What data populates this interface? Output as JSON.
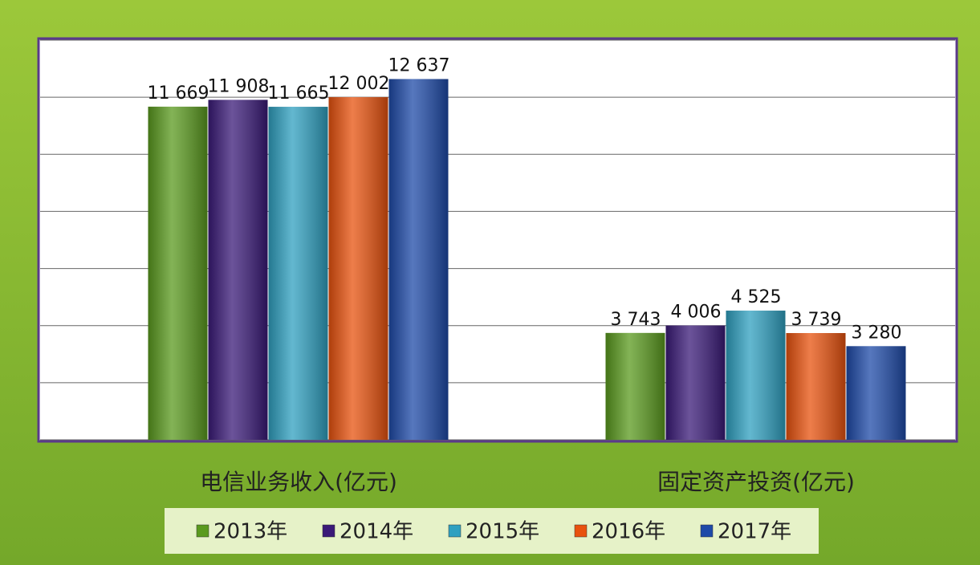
{
  "chart_data": {
    "type": "bar",
    "categories": [
      "电信业务收入(亿元)",
      "固定资产投资(亿元)"
    ],
    "series": [
      {
        "name": "2013年",
        "color": "#5a9a1e",
        "values": [
          11669,
          3743
        ],
        "value_labels": [
          "11 669",
          "3 743"
        ]
      },
      {
        "name": "2014年",
        "color": "#3a1a78",
        "values": [
          11908,
          4006
        ],
        "value_labels": [
          "11 908",
          "4 006"
        ]
      },
      {
        "name": "2015年",
        "color": "#2fa0c0",
        "values": [
          11665,
          4525
        ],
        "value_labels": [
          "11 665",
          "4 525"
        ]
      },
      {
        "name": "2016年",
        "color": "#e8520e",
        "values": [
          12002,
          3739
        ],
        "value_labels": [
          "12 002",
          "3 739"
        ]
      },
      {
        "name": "2017年",
        "color": "#1e4aa8",
        "values": [
          12637,
          3280
        ],
        "value_labels": [
          "12 637",
          "3 280"
        ]
      }
    ],
    "ylim": [
      0,
      14000
    ],
    "yticks": [
      0,
      2000,
      4000,
      6000,
      8000,
      10000,
      12000,
      14000
    ],
    "grid": true
  }
}
